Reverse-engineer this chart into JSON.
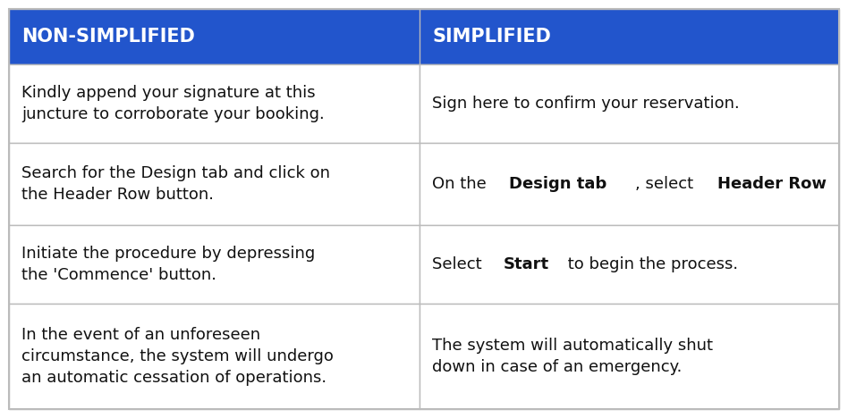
{
  "header": [
    "NON-SIMPLIFIED",
    "SIMPLIFIED"
  ],
  "header_bg": "#2255cc",
  "header_text_color": "#ffffff",
  "header_font_size": 15,
  "cell_bg": "#ffffff",
  "border_color": "#bbbbbb",
  "cell_font_size": 13,
  "col_split": 0.495,
  "rows": [
    {
      "left": "Kindly append your signature at this\njuncture to corroborate your booking.",
      "right_parts": [
        {
          "text": "Sign here to confirm your reservation.",
          "bold": false
        }
      ]
    },
    {
      "left": "Search for the Design tab and click on\nthe Header Row button.",
      "right_parts": [
        {
          "text": "On the ",
          "bold": false
        },
        {
          "text": "Design tab",
          "bold": true
        },
        {
          "text": ", select ",
          "bold": false
        },
        {
          "text": "Header Row",
          "bold": true
        },
        {
          "text": ".",
          "bold": false
        }
      ]
    },
    {
      "left": "Initiate the procedure by depressing\nthe 'Commence' button.",
      "right_parts": [
        {
          "text": "Select ",
          "bold": false
        },
        {
          "text": "Start",
          "bold": true
        },
        {
          "text": " to begin the process.",
          "bold": false
        }
      ]
    },
    {
      "left": "In the event of an unforeseen\ncircumstance, the system will undergo\nan automatic cessation of operations.",
      "right_parts": [
        {
          "text": "The system will automatically shut\ndown in case of an emergency.",
          "bold": false
        }
      ]
    }
  ]
}
